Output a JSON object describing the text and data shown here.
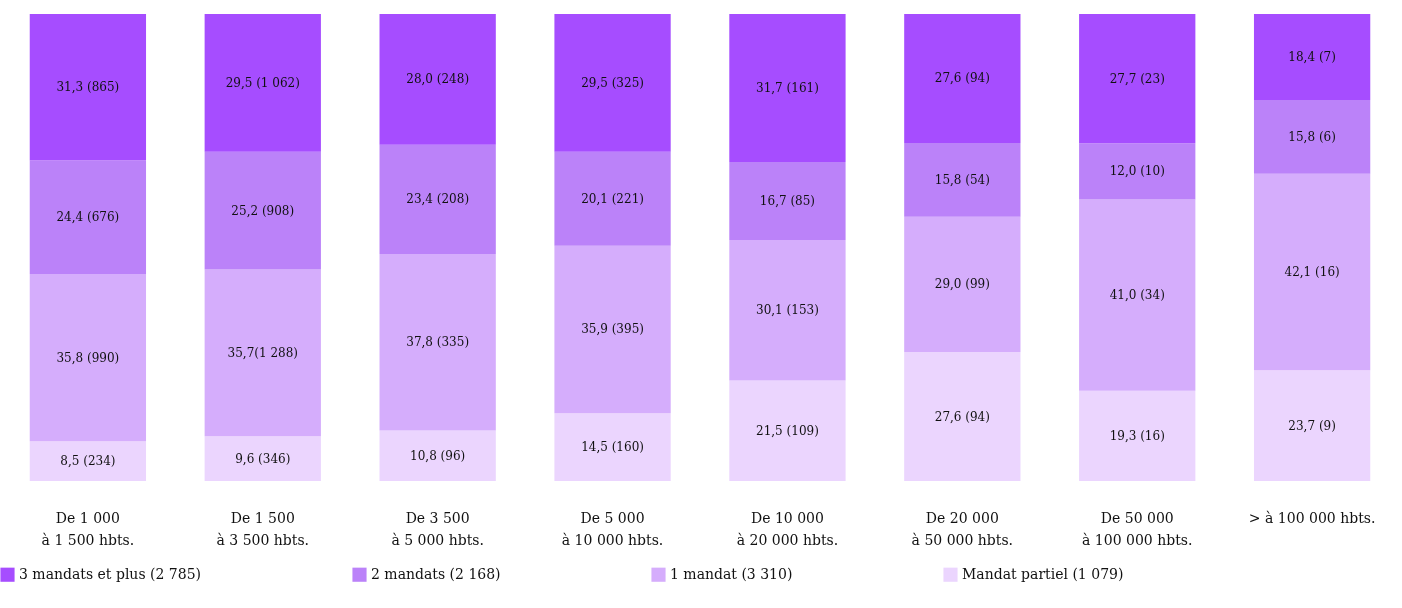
{
  "chart_data": {
    "type": "bar",
    "stacked": true,
    "legend": "bottom",
    "categories": [
      "De 1 000\nà 1 500 hbts.",
      "De 1 500\nà 3 500 hbts.",
      "De 3 500\nà 5 000 hbts.",
      "De 5 000\nà 10 000 hbts.",
      "De 10 000\nà 20 000 hbts.",
      "De 20 000\nà 50 000 hbts.",
      "De 50 000\nà 100 000 hbts.",
      "> à 100 000 hbts."
    ],
    "series": [
      {
        "name": "Mandat partiel (1 079)",
        "color": "#ebd5fe",
        "values": [
          8.5,
          9.6,
          10.8,
          14.5,
          21.5,
          27.6,
          19.3,
          23.7
        ],
        "value_labels": [
          "8,5 (234)",
          "9,6 (346)",
          "10,8 (96)",
          "14,5 (160)",
          "21,5 (109)",
          "27,6 (94)",
          "19,3 (16)",
          "23,7 (9)"
        ]
      },
      {
        "name": "1 mandat (3 310)",
        "color": "#d5adfc",
        "values": [
          35.8,
          35.7,
          37.8,
          35.9,
          30.1,
          29.0,
          41.0,
          42.1
        ],
        "value_labels": [
          "35,8 (990)",
          "35,7(1 288)",
          "37,8 (335)",
          "35,9 (395)",
          "30,1 (153)",
          "29,0 (99)",
          "41,0 (34)",
          "42,1 (16)"
        ]
      },
      {
        "name": "2 mandats (2 168)",
        "color": "#bb82f9",
        "values": [
          24.4,
          25.2,
          23.4,
          20.1,
          16.7,
          15.8,
          12.0,
          15.8
        ],
        "value_labels": [
          "24,4 (676)",
          "25,2 (908)",
          "23,4 (208)",
          "20,1 (221)",
          "16,7 (85)",
          "15,8 (54)",
          "12,0 (10)",
          "15,8 (6)"
        ]
      },
      {
        "name": "3 mandats et plus (2 785)",
        "color": "#a64dff",
        "values": [
          31.3,
          29.5,
          28.0,
          29.5,
          31.7,
          27.6,
          27.7,
          18.4
        ],
        "value_labels": [
          "31,3 (865)",
          "29,5 (1 062)",
          "28,0 (248)",
          "29,5 (325)",
          "31,7 (161)",
          "27,6 (94)",
          "27,7 (23)",
          "18,4 (7)"
        ]
      }
    ]
  }
}
